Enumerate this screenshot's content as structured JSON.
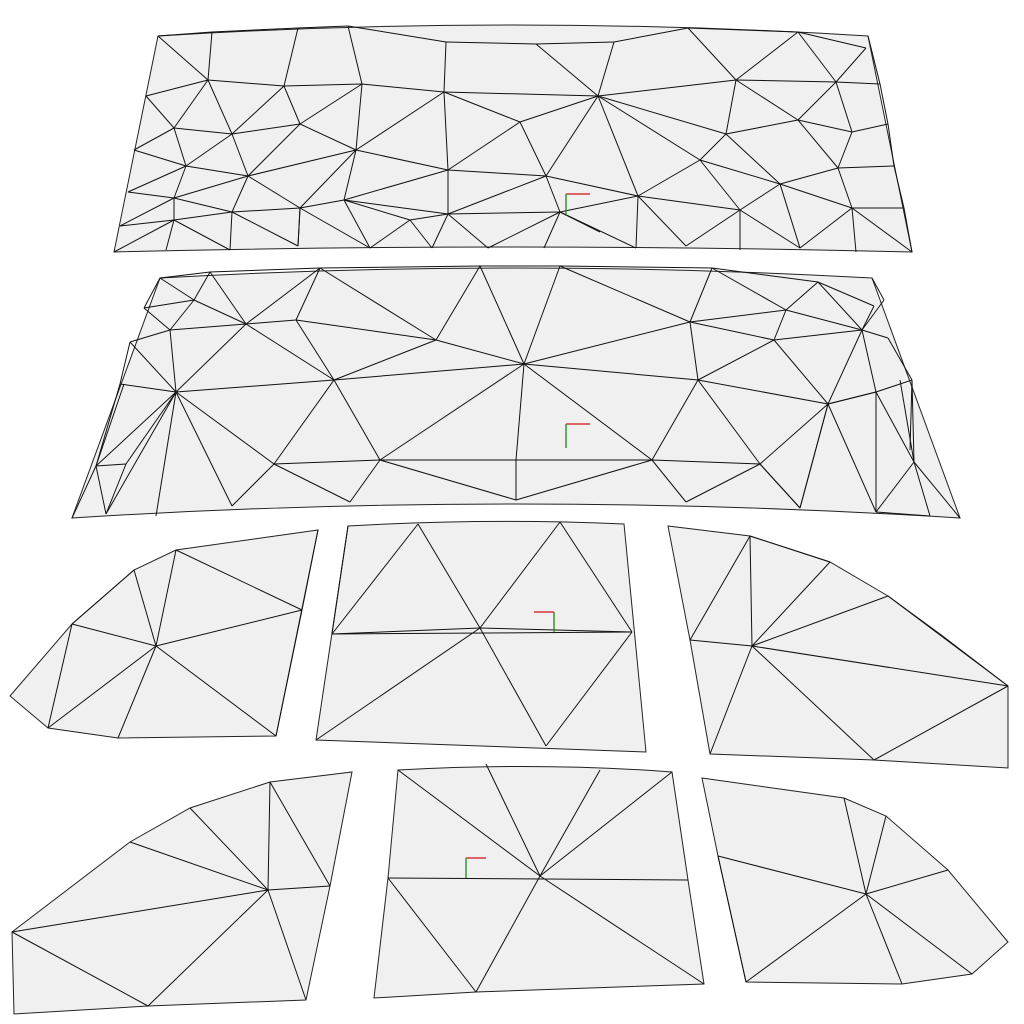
{
  "colors": {
    "background": "#ffffff",
    "panel_fill": "#f0f0f0",
    "mesh_edge": "#111111",
    "axis_x": "#d01010",
    "axis_y": "#1a8a1a"
  },
  "panels": [
    {
      "id": "windshield-top"
    },
    {
      "id": "windshield-bottom"
    },
    {
      "id": "left-window-upper"
    },
    {
      "id": "center-window-upper"
    },
    {
      "id": "right-window-upper"
    },
    {
      "id": "left-window-lower"
    },
    {
      "id": "center-window-lower"
    },
    {
      "id": "right-window-lower"
    }
  ]
}
